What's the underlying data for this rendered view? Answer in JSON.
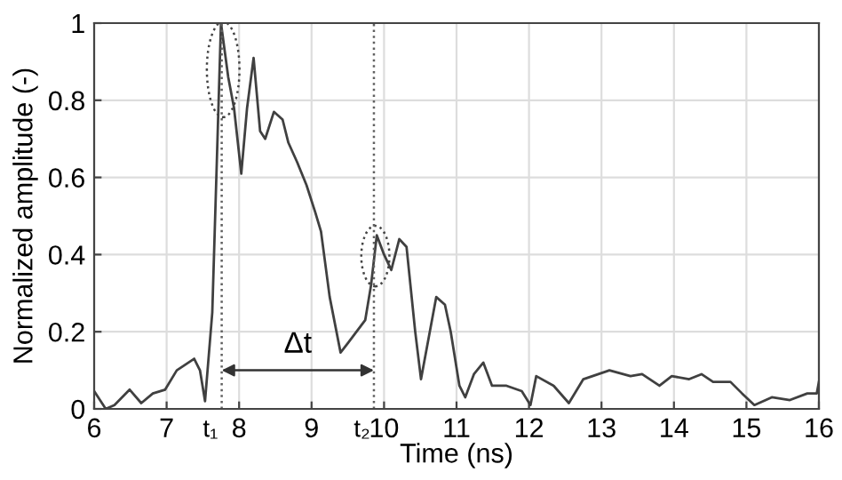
{
  "chart_data": {
    "type": "line",
    "xlabel": "Time (ns)",
    "ylabel": "Normalized amplitude (-)",
    "series": [
      {
        "color": "#404040",
        "x": [
          6.0,
          6.16,
          6.28,
          6.49,
          6.65,
          6.81,
          6.98,
          7.14,
          7.26,
          7.38,
          7.46,
          7.53,
          7.63,
          7.75,
          7.85,
          7.93,
          8.03,
          8.11,
          8.2,
          8.29,
          8.36,
          8.48,
          8.6,
          8.68,
          8.8,
          8.93,
          9.05,
          9.13,
          9.25,
          9.4,
          9.5,
          9.62,
          9.74,
          9.82,
          9.9,
          10.0,
          10.1,
          10.21,
          10.31,
          10.43,
          10.51,
          10.72,
          10.84,
          10.92,
          11.04,
          11.12,
          11.24,
          11.37,
          11.49,
          11.69,
          11.9,
          12.02,
          12.1,
          12.34,
          12.55,
          12.75,
          13.11,
          13.4,
          13.56,
          13.8,
          13.97,
          14.21,
          14.38,
          14.54,
          14.78,
          14.94,
          15.11,
          15.35,
          15.6,
          15.84,
          15.97,
          16.0
        ],
        "values": [
          0.046,
          0.0,
          0.01,
          0.05,
          0.015,
          0.04,
          0.05,
          0.1,
          0.115,
          0.13,
          0.1,
          0.02,
          0.25,
          1.0,
          0.86,
          0.78,
          0.61,
          0.78,
          0.91,
          0.72,
          0.7,
          0.77,
          0.75,
          0.69,
          0.64,
          0.58,
          0.51,
          0.46,
          0.29,
          0.146,
          0.17,
          0.2,
          0.23,
          0.32,
          0.45,
          0.4,
          0.36,
          0.44,
          0.42,
          0.2,
          0.077,
          0.29,
          0.27,
          0.2,
          0.06,
          0.03,
          0.09,
          0.12,
          0.06,
          0.06,
          0.046,
          0.01,
          0.085,
          0.06,
          0.015,
          0.077,
          0.1,
          0.085,
          0.09,
          0.06,
          0.085,
          0.077,
          0.09,
          0.07,
          0.07,
          0.04,
          0.01,
          0.03,
          0.023,
          0.04,
          0.04,
          0.07
        ]
      }
    ],
    "xlim": [
      6,
      16
    ],
    "xticks": [
      6,
      7,
      8,
      9,
      10,
      11,
      12,
      13,
      14,
      15,
      16
    ],
    "ylim": [
      0,
      1
    ],
    "yticks": [
      0,
      0.2,
      0.4,
      0.6,
      0.8,
      1
    ],
    "grid": true,
    "marker": "none",
    "line_style": "solid",
    "ref_lines": [
      {
        "axis": "x",
        "value": 7.76,
        "label": "t₁",
        "line_style": "dotted",
        "color": "#606060"
      },
      {
        "axis": "x",
        "value": 9.86,
        "label": "t₂",
        "line_style": "dotted",
        "color": "#606060"
      }
    ],
    "annotations": [
      "Δt"
    ]
  }
}
